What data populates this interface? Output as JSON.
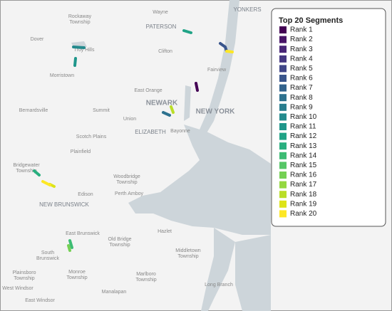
{
  "legend": {
    "title": "Top 20 Segments",
    "items": [
      {
        "label": "Rank 1",
        "color": "#440154"
      },
      {
        "label": "Rank 2",
        "color": "#481467"
      },
      {
        "label": "Rank 3",
        "color": "#482576"
      },
      {
        "label": "Rank 4",
        "color": "#453781"
      },
      {
        "label": "Rank 5",
        "color": "#404688"
      },
      {
        "label": "Rank 6",
        "color": "#39558c"
      },
      {
        "label": "Rank 7",
        "color": "#33638d"
      },
      {
        "label": "Rank 8",
        "color": "#2d718e"
      },
      {
        "label": "Rank 9",
        "color": "#287d8e"
      },
      {
        "label": "Rank 10",
        "color": "#238a8d"
      },
      {
        "label": "Rank 11",
        "color": "#1f968b"
      },
      {
        "label": "Rank 12",
        "color": "#20a386"
      },
      {
        "label": "Rank 13",
        "color": "#29af7f"
      },
      {
        "label": "Rank 14",
        "color": "#3dbc74"
      },
      {
        "label": "Rank 15",
        "color": "#56c667"
      },
      {
        "label": "Rank 16",
        "color": "#75d054"
      },
      {
        "label": "Rank 17",
        "color": "#95d840"
      },
      {
        "label": "Rank 18",
        "color": "#bade28"
      },
      {
        "label": "Rank 19",
        "color": "#dde318"
      },
      {
        "label": "Rank 20",
        "color": "#fde725"
      }
    ]
  },
  "places": [
    [
      "Wayne"
    ],
    [
      "PATERSON"
    ],
    [
      "YONKERS"
    ],
    [
      "Rockaway",
      "Township"
    ],
    [
      "Dover"
    ],
    [
      "Clifton"
    ],
    [
      "Morristown"
    ],
    [
      "Fairview"
    ],
    [
      "East Orange"
    ],
    [
      "NEWARK"
    ],
    [
      "NEW YORK"
    ],
    [
      "Bernardsville"
    ],
    [
      "Summit"
    ],
    [
      "Union"
    ],
    [
      "ELIZABETH"
    ],
    [
      "Bayonne"
    ],
    [
      "Scotch Plains"
    ],
    [
      "Plainfield"
    ],
    [
      "Bridgewater",
      "Township"
    ],
    [
      "Woodbridge",
      "Township"
    ],
    [
      "Edison"
    ],
    [
      "Perth Amboy"
    ],
    [
      "NEW BRUNSWICK"
    ],
    [
      "East Brunswick"
    ],
    [
      "Old Bridge",
      "Township"
    ],
    [
      "Hazlet"
    ],
    [
      "South",
      "Brunswick"
    ],
    [
      "Middletown",
      "Township"
    ],
    [
      "Monroe",
      "Township"
    ],
    [
      "Marlboro",
      "Township"
    ],
    [
      "Plainsboro",
      "Township"
    ],
    [
      "Long Branch"
    ],
    [
      "Manalapan"
    ],
    [
      "West Windsor"
    ],
    [
      "East Windsor"
    ],
    [
      "Troy Hills"
    ]
  ]
}
